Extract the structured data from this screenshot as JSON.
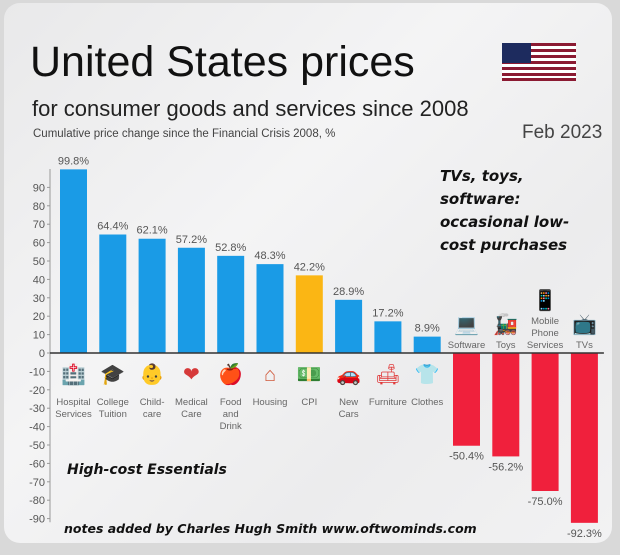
{
  "header": {
    "title": "United States prices",
    "subtitle": "for consumer goods and services since 2008",
    "caption": "Cumulative price change since the Financial Crisis 2008, %",
    "date": "Feb 2023",
    "flag_icon": "us-flag-icon"
  },
  "notes": {
    "tv_note_lines": [
      "TVs, toys,",
      "software:",
      "occasional low-",
      "cost purchases"
    ],
    "high_cost": "High-cost Essentials",
    "credit": "notes added by Charles Hugh Smith  www.oftwominds.com"
  },
  "colors": {
    "positive": "#1a9be6",
    "cpi": "#fbb614",
    "negative": "#f0203c",
    "axis": "#333333"
  },
  "chart_data": {
    "type": "bar",
    "title": "United States prices",
    "subtitle": "for consumer goods and services since 2008",
    "ylabel": "Cumulative price change since the Financial Crisis 2008, %",
    "xlabel": "",
    "ylim": [
      -90,
      100
    ],
    "yticks": [
      90,
      80,
      70,
      60,
      50,
      40,
      30,
      20,
      10,
      0,
      -10,
      -20,
      -30,
      -40,
      -50,
      -60,
      -70,
      -80,
      -90
    ],
    "grid": false,
    "categories": [
      {
        "label": [
          "Hospital",
          "Services"
        ],
        "icon": "hospital-icon"
      },
      {
        "label": [
          "College",
          "Tuition"
        ],
        "icon": "graduation-cap-icon"
      },
      {
        "label": [
          "Child-",
          "care"
        ],
        "icon": "stroller-icon"
      },
      {
        "label": [
          "Medical",
          "Care"
        ],
        "icon": "heart-icon"
      },
      {
        "label": [
          "Food",
          "and",
          "Drink"
        ],
        "icon": "food-icon"
      },
      {
        "label": [
          "Housing"
        ],
        "icon": "house-icon"
      },
      {
        "label": [
          "CPI"
        ],
        "icon": "money-icon"
      },
      {
        "label": [
          "New",
          "Cars"
        ],
        "icon": "car-icon"
      },
      {
        "label": [
          "Furniture"
        ],
        "icon": "armchair-icon"
      },
      {
        "label": [
          "Clothes"
        ],
        "icon": "shirt-icon"
      },
      {
        "label": [
          "Software"
        ],
        "icon": "laptop-icon"
      },
      {
        "label": [
          "Toys"
        ],
        "icon": "toy-train-icon"
      },
      {
        "label": [
          "Mobile",
          "Phone",
          "Services"
        ],
        "icon": "mobile-phone-icon"
      },
      {
        "label": [
          "TVs"
        ],
        "icon": "tv-icon"
      }
    ],
    "values": [
      99.8,
      64.4,
      62.1,
      57.2,
      52.8,
      48.3,
      42.2,
      28.9,
      17.2,
      8.9,
      -50.4,
      -56.2,
      -75.0,
      -92.3
    ],
    "value_labels": [
      "99.8%",
      "64.4%",
      "62.1%",
      "57.2%",
      "52.8%",
      "48.3%",
      "42.2%",
      "28.9%",
      "17.2%",
      "8.9%",
      "-50.4%",
      "-56.2%",
      "-75.0%",
      "-92.3%"
    ],
    "highlight": "CPI"
  }
}
